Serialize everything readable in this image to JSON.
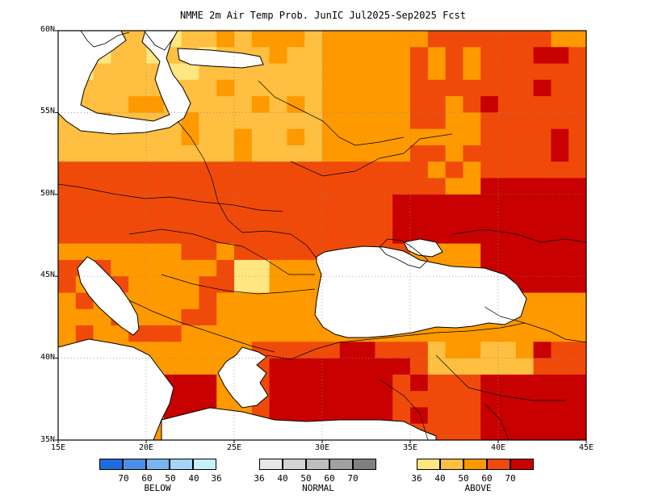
{
  "title": "NMME 2m Air Temp Prob. JunIC  Jul2025-Sep2025 Fcst",
  "map": {
    "lon_range": [
      15,
      45
    ],
    "lat_range": [
      35,
      60
    ],
    "lat_labels": [
      "60N",
      "55N",
      "50N",
      "45N",
      "40N",
      "35N"
    ],
    "lon_labels": [
      "15E",
      "20E",
      "25E",
      "30E",
      "35E",
      "40E",
      "45E"
    ],
    "gridlines": "dotted",
    "ocean_color": "#ffffff",
    "no_signal_color": "#ffffff",
    "dominant_category": "above",
    "features": {
      "strongest_above": "Middle East, southern Russia, Aegean / western Turkey",
      "weak_above": "Poland, western Balkans, western Romania"
    }
  },
  "legend": {
    "below": {
      "label": "BELOW",
      "ticks": [
        "70",
        "60",
        "50",
        "40",
        "36"
      ],
      "colors": [
        "#1e6de0",
        "#4a90e8",
        "#78b4f0",
        "#a6d4f8",
        "#c8f0f8"
      ]
    },
    "normal": {
      "label": "NORMAL",
      "ticks": [
        "36",
        "40",
        "50",
        "60",
        "70"
      ],
      "colors": [
        "#e8e8e8",
        "#d4d4d4",
        "#bebebe",
        "#a0a0a0",
        "#808080"
      ]
    },
    "above": {
      "label": "ABOVE",
      "ticks": [
        "36",
        "40",
        "50",
        "60",
        "70"
      ],
      "colors": [
        "#ffe680",
        "#ffbf40",
        "#ff9900",
        "#f04a0a",
        "#c80000"
      ]
    }
  }
}
